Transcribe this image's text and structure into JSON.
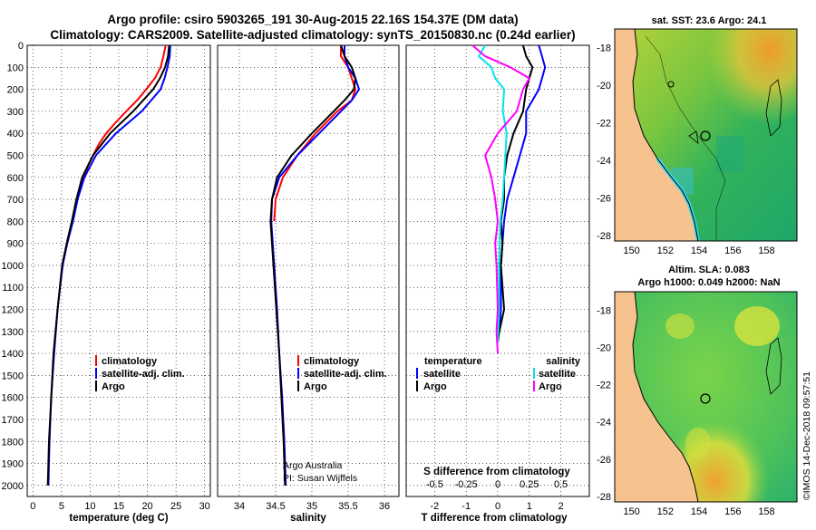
{
  "title": {
    "line1": "Argo profile: csiro 5903265_191 30-Aug-2015 22.16S 154.37E (DM data)",
    "line2": "Climatology: CARS2009. Satellite-adjusted climatology: synTS_20150830.nc (0.24d earlier)"
  },
  "colors": {
    "climatology": "#ff0000",
    "satellite": "#0000ff",
    "argo": "#000000",
    "sat_salinity": "#00e5ee",
    "argo_salinity": "#ff00ff"
  },
  "depth_ticks": [
    "0",
    "100",
    "200",
    "300",
    "400",
    "500",
    "600",
    "700",
    "800",
    "900",
    "1000",
    "1100",
    "1200",
    "1300",
    "1400",
    "1500",
    "1600",
    "1700",
    "1800",
    "1900",
    "2000"
  ],
  "chart_data": [
    {
      "type": "line",
      "title": "temperature profile",
      "xlabel": "temperature (deg C)",
      "ylabel": "depth",
      "xlim": [
        -1,
        31
      ],
      "ylim": [
        2050,
        0
      ],
      "xticks": [
        "0",
        "5",
        "10",
        "15",
        "20",
        "25",
        "30"
      ],
      "legend": [
        "climatology",
        "satellite-adj. clim.",
        "Argo"
      ],
      "series": [
        {
          "name": "climatology",
          "depth": [
            0,
            50,
            100,
            150,
            200,
            250,
            300,
            350,
            400,
            450,
            500,
            550,
            600,
            650,
            700
          ],
          "values": [
            23.2,
            22.8,
            22.3,
            21.3,
            19.8,
            18.2,
            16.3,
            14.5,
            12.8,
            11.5,
            10.5,
            9.6,
            8.9,
            8.2,
            7.8
          ]
        },
        {
          "name": "satellite-adj. clim.",
          "depth": [
            0,
            50,
            100,
            150,
            200,
            300,
            400,
            500,
            600,
            700,
            800,
            900,
            1000,
            1200,
            1400,
            1600,
            1800,
            2000
          ],
          "values": [
            24.0,
            23.9,
            23.5,
            23.0,
            22.3,
            19.0,
            14.5,
            11.0,
            9.0,
            7.8,
            7.0,
            6.0,
            5.2,
            4.3,
            3.7,
            3.2,
            2.9,
            2.7
          ]
        },
        {
          "name": "Argo",
          "depth": [
            0,
            50,
            100,
            150,
            200,
            300,
            400,
            500,
            600,
            700,
            800,
            900,
            1000,
            1200,
            1400,
            1600,
            1800,
            2000
          ],
          "values": [
            23.8,
            23.6,
            23.1,
            22.2,
            21.0,
            17.5,
            13.5,
            10.5,
            8.6,
            7.6,
            6.8,
            5.9,
            5.1,
            4.3,
            3.6,
            3.2,
            2.8,
            2.6
          ]
        }
      ]
    },
    {
      "type": "line",
      "title": "salinity profile",
      "xlabel": "salinity",
      "ylabel": "depth",
      "xlim": [
        33.7,
        36.2
      ],
      "ylim": [
        2050,
        0
      ],
      "xticks": [
        "34",
        "34.5",
        "35",
        "35.5",
        "36"
      ],
      "legend": [
        "climatology",
        "satellite-adj. clim.",
        "Argo"
      ],
      "series": [
        {
          "name": "climatology",
          "depth": [
            0,
            50,
            100,
            150,
            200,
            250,
            300,
            400,
            500,
            600,
            700,
            800
          ],
          "values": [
            35.4,
            35.4,
            35.5,
            35.55,
            35.6,
            35.55,
            35.35,
            35.05,
            34.8,
            34.6,
            34.5,
            34.48
          ]
        },
        {
          "name": "satellite-adj. clim.",
          "depth": [
            0,
            50,
            100,
            150,
            200,
            250,
            300,
            400,
            500,
            600,
            700,
            800,
            900,
            1000,
            1200,
            1400,
            1600,
            1800,
            2000
          ],
          "values": [
            35.45,
            35.45,
            35.5,
            35.6,
            35.65,
            35.55,
            35.4,
            35.1,
            34.8,
            34.55,
            34.45,
            34.44,
            34.46,
            34.48,
            34.52,
            34.55,
            34.59,
            34.62,
            34.64
          ]
        },
        {
          "name": "Argo",
          "depth": [
            0,
            50,
            100,
            150,
            200,
            250,
            300,
            400,
            500,
            600,
            700,
            800,
            900,
            1000,
            1200,
            1400,
            1600,
            1800,
            2000
          ],
          "values": [
            35.4,
            35.45,
            35.55,
            35.6,
            35.58,
            35.45,
            35.3,
            35.0,
            34.72,
            34.52,
            34.45,
            34.43,
            34.45,
            34.47,
            34.51,
            34.55,
            34.58,
            34.61,
            34.63
          ]
        }
      ]
    },
    {
      "type": "line",
      "title": "difference from climatology",
      "xlabel": "T difference from climatology",
      "x2label": "S difference from climatology",
      "xlim": [
        -2.9,
        2.9
      ],
      "ylim": [
        2050,
        0
      ],
      "xticks": [
        "-2",
        "-1",
        "0",
        "1",
        "2"
      ],
      "x2ticks": [
        "-0.5",
        "-0.25",
        "0",
        "0.25",
        "0.5"
      ],
      "legend_left_title": "temperature",
      "legend_right_title": "salinity",
      "legend_left": [
        "satellite",
        "Argo"
      ],
      "legend_right": [
        "satellite",
        "Argo"
      ],
      "series": [
        {
          "name": "temperature satellite",
          "depth": [
            0,
            50,
            100,
            150,
            200,
            250,
            300,
            350,
            400,
            500,
            600,
            700,
            800,
            900,
            1000,
            1100,
            1200,
            1300
          ],
          "values": [
            1.3,
            1.4,
            1.5,
            1.4,
            1.3,
            1.1,
            0.9,
            0.9,
            0.9,
            0.7,
            0.5,
            0.3,
            0.2,
            0.15,
            0.1,
            0.1,
            0.1,
            0.05
          ]
        },
        {
          "name": "temperature Argo",
          "depth": [
            0,
            50,
            100,
            150,
            200,
            300,
            400,
            500,
            600,
            700,
            800,
            900,
            1000,
            1200,
            1300,
            1350
          ],
          "values": [
            0.8,
            0.9,
            1.1,
            1.0,
            0.9,
            0.8,
            0.5,
            0.3,
            0.2,
            0.2,
            0.1,
            0.15,
            0.1,
            0.2,
            0.05,
            0.0
          ]
        },
        {
          "name": "salinity satellite",
          "depth": [
            0,
            50,
            100,
            150,
            200,
            300,
            400,
            500,
            600,
            700,
            800,
            1000,
            1200,
            1350
          ],
          "values": [
            -0.1,
            -0.15,
            -0.05,
            -0.02,
            0.05,
            0.04,
            0.07,
            0.06,
            0.05,
            0.04,
            0.02,
            0.01,
            0.01,
            0.0
          ]
        },
        {
          "name": "salinity Argo",
          "depth": [
            0,
            50,
            100,
            150,
            200,
            300,
            400,
            500,
            600,
            700,
            800,
            900,
            1000,
            1200,
            1300,
            1400
          ],
          "values": [
            -0.2,
            -0.1,
            0.1,
            0.25,
            0.2,
            0.15,
            0.0,
            -0.1,
            -0.05,
            -0.02,
            0.0,
            -0.02,
            -0.01,
            0.0,
            -0.01,
            0.0
          ]
        }
      ]
    }
  ],
  "credit": {
    "line1": "Argo Australia",
    "line2": "PI: Susan Wijffels"
  },
  "maps": {
    "lat_ticks": [
      "-18",
      "-20",
      "-22",
      "-24",
      "-26",
      "-28"
    ],
    "lon_ticks": [
      "150",
      "152",
      "154",
      "156",
      "158"
    ],
    "sst_title": "sat. SST: 23.6 Argo: 24.1",
    "sla_title_line1": "Altim. SLA: 0.083",
    "sla_title_line2": "Argo h1000: 0.049 h2000: NaN",
    "watermark": "©IMOS 14-Dec-2018 09:57:51"
  }
}
